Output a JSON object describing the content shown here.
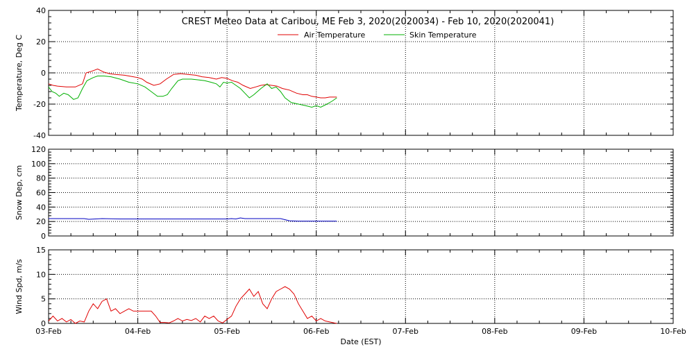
{
  "chart_data": {
    "title": "CREST Meteo Data at Caribou, ME   Feb  3, 2020(2020034) - Feb 10, 2020(2020041)",
    "xlabel": "Date (EST)",
    "x_tick_labels": [
      "03-Feb",
      "04-Feb",
      "05-Feb",
      "06-Feb",
      "07-Feb",
      "08-Feb",
      "09-Feb",
      "10-Feb"
    ],
    "grid": true,
    "legend_placement": "top",
    "panels": [
      {
        "type": "line",
        "ylabel": "Temperature, Deg C",
        "ylim": [
          -40,
          40
        ],
        "yticks": [
          -40,
          -20,
          0,
          20,
          40
        ],
        "series": [
          {
            "name": "Air Temperature",
            "color": "#e00000",
            "x": [
              0.0,
              0.05,
              0.1,
              0.2,
              0.3,
              0.38,
              0.42,
              0.48,
              0.55,
              0.62,
              0.68,
              0.75,
              0.85,
              0.95,
              1.0,
              1.05,
              1.1,
              1.18,
              1.25,
              1.32,
              1.4,
              1.48,
              1.56,
              1.65,
              1.72,
              1.8,
              1.88,
              1.94,
              2.0,
              2.06,
              2.12,
              2.18,
              2.26,
              2.32,
              2.38,
              2.44,
              2.5,
              2.56,
              2.62,
              2.7,
              2.78,
              2.85,
              2.9,
              2.95,
              3.0,
              3.05,
              3.1,
              3.15,
              3.2,
              3.23
            ],
            "values": [
              -7,
              -8,
              -8.5,
              -9,
              -9,
              -7,
              0,
              1,
              2.5,
              0.5,
              -0.5,
              -1,
              -1.5,
              -2.5,
              -3,
              -4,
              -6,
              -8,
              -7,
              -4,
              -1,
              -0.5,
              -1,
              -1.5,
              -2.5,
              -3,
              -4,
              -3,
              -3.5,
              -5,
              -6,
              -8,
              -10,
              -9,
              -8,
              -7.5,
              -8,
              -8.5,
              -10,
              -11,
              -13,
              -14,
              -14,
              -15,
              -15.5,
              -16,
              -16,
              -15.5,
              -15.5,
              -15.5
            ]
          },
          {
            "name": "Skin Temperature",
            "color": "#00b000",
            "x": [
              0.0,
              0.04,
              0.08,
              0.12,
              0.17,
              0.22,
              0.28,
              0.33,
              0.38,
              0.43,
              0.5,
              0.55,
              0.62,
              0.7,
              0.8,
              0.9,
              1.0,
              1.08,
              1.15,
              1.22,
              1.28,
              1.33,
              1.38,
              1.45,
              1.5,
              1.6,
              1.68,
              1.75,
              1.82,
              1.88,
              1.92,
              1.96,
              2.0,
              2.05,
              2.1,
              2.15,
              2.2,
              2.25,
              2.3,
              2.38,
              2.45,
              2.5,
              2.55,
              2.6,
              2.65,
              2.72,
              2.8,
              2.88,
              2.95,
              3.0,
              3.05,
              3.12,
              3.18,
              3.23
            ],
            "values": [
              -9,
              -12,
              -13,
              -15,
              -13,
              -14,
              -17,
              -16,
              -10,
              -5,
              -3,
              -2,
              -2,
              -2.5,
              -4,
              -6,
              -7,
              -9,
              -12,
              -15,
              -15,
              -14,
              -10,
              -5,
              -4,
              -4,
              -4.5,
              -5,
              -6,
              -7,
              -9,
              -6,
              -6.5,
              -6,
              -8,
              -10,
              -13,
              -16,
              -14,
              -10,
              -7,
              -10,
              -9,
              -12,
              -16,
              -19,
              -20,
              -21,
              -22,
              -21,
              -22,
              -20,
              -18,
              -16
            ]
          }
        ]
      },
      {
        "type": "line",
        "ylabel": "Snow Dep, cm",
        "ylim": [
          0,
          120
        ],
        "yticks": [
          0,
          20,
          40,
          60,
          80,
          100,
          120
        ],
        "series": [
          {
            "color": "#0000c0",
            "x": [
              0.0,
              0.2,
              0.4,
              0.45,
              0.6,
              0.8,
              1.0,
              1.2,
              1.4,
              1.6,
              1.8,
              2.0,
              2.05,
              2.1,
              2.15,
              2.2,
              2.4,
              2.6,
              2.7,
              2.8,
              3.0,
              3.23
            ],
            "values": [
              24,
              24,
              24,
              23,
              24,
              23.5,
              23.5,
              23.5,
              23.5,
              23.5,
              23.5,
              23.5,
              24,
              23.5,
              25,
              24,
              24,
              24,
              21,
              20.5,
              20.5,
              20.5
            ]
          }
        ]
      },
      {
        "type": "line",
        "ylabel": "Wind Spd, m/s",
        "ylim": [
          0,
          15
        ],
        "yticks": [
          0,
          5,
          10,
          15
        ],
        "series": [
          {
            "color": "#e00000",
            "x": [
              0.0,
              0.05,
              0.1,
              0.15,
              0.2,
              0.25,
              0.3,
              0.35,
              0.4,
              0.45,
              0.5,
              0.55,
              0.6,
              0.65,
              0.7,
              0.75,
              0.8,
              0.85,
              0.9,
              0.95,
              1.0,
              1.05,
              1.1,
              1.15,
              1.2,
              1.25,
              1.3,
              1.35,
              1.4,
              1.45,
              1.5,
              1.55,
              1.6,
              1.65,
              1.7,
              1.75,
              1.8,
              1.85,
              1.9,
              1.95,
              2.0,
              2.05,
              2.1,
              2.15,
              2.2,
              2.25,
              2.3,
              2.35,
              2.4,
              2.45,
              2.5,
              2.55,
              2.6,
              2.65,
              2.7,
              2.75,
              2.8,
              2.85,
              2.9,
              2.95,
              3.0,
              3.05,
              3.1,
              3.15,
              3.2,
              3.23
            ],
            "values": [
              0.5,
              1.5,
              0.5,
              1,
              0.3,
              0.8,
              0,
              0.5,
              0.3,
              2.5,
              4,
              3,
              4.5,
              5,
              2.5,
              3,
              2,
              2.5,
              3,
              2.5,
              2.5,
              2.5,
              2.5,
              2.5,
              1.5,
              0.2,
              0.2,
              0.1,
              0.5,
              1,
              0.5,
              0.8,
              0.6,
              1,
              0.3,
              1.5,
              1,
              1.5,
              0.5,
              0.1,
              0.8,
              1.5,
              3.5,
              5,
              6,
              7,
              5.5,
              6.5,
              4,
              3,
              5,
              6.5,
              7,
              7.5,
              7,
              6,
              4,
              2.5,
              1,
              1.5,
              0.5,
              1,
              0.5,
              0.3,
              0.1,
              0
            ]
          }
        ]
      }
    ]
  }
}
